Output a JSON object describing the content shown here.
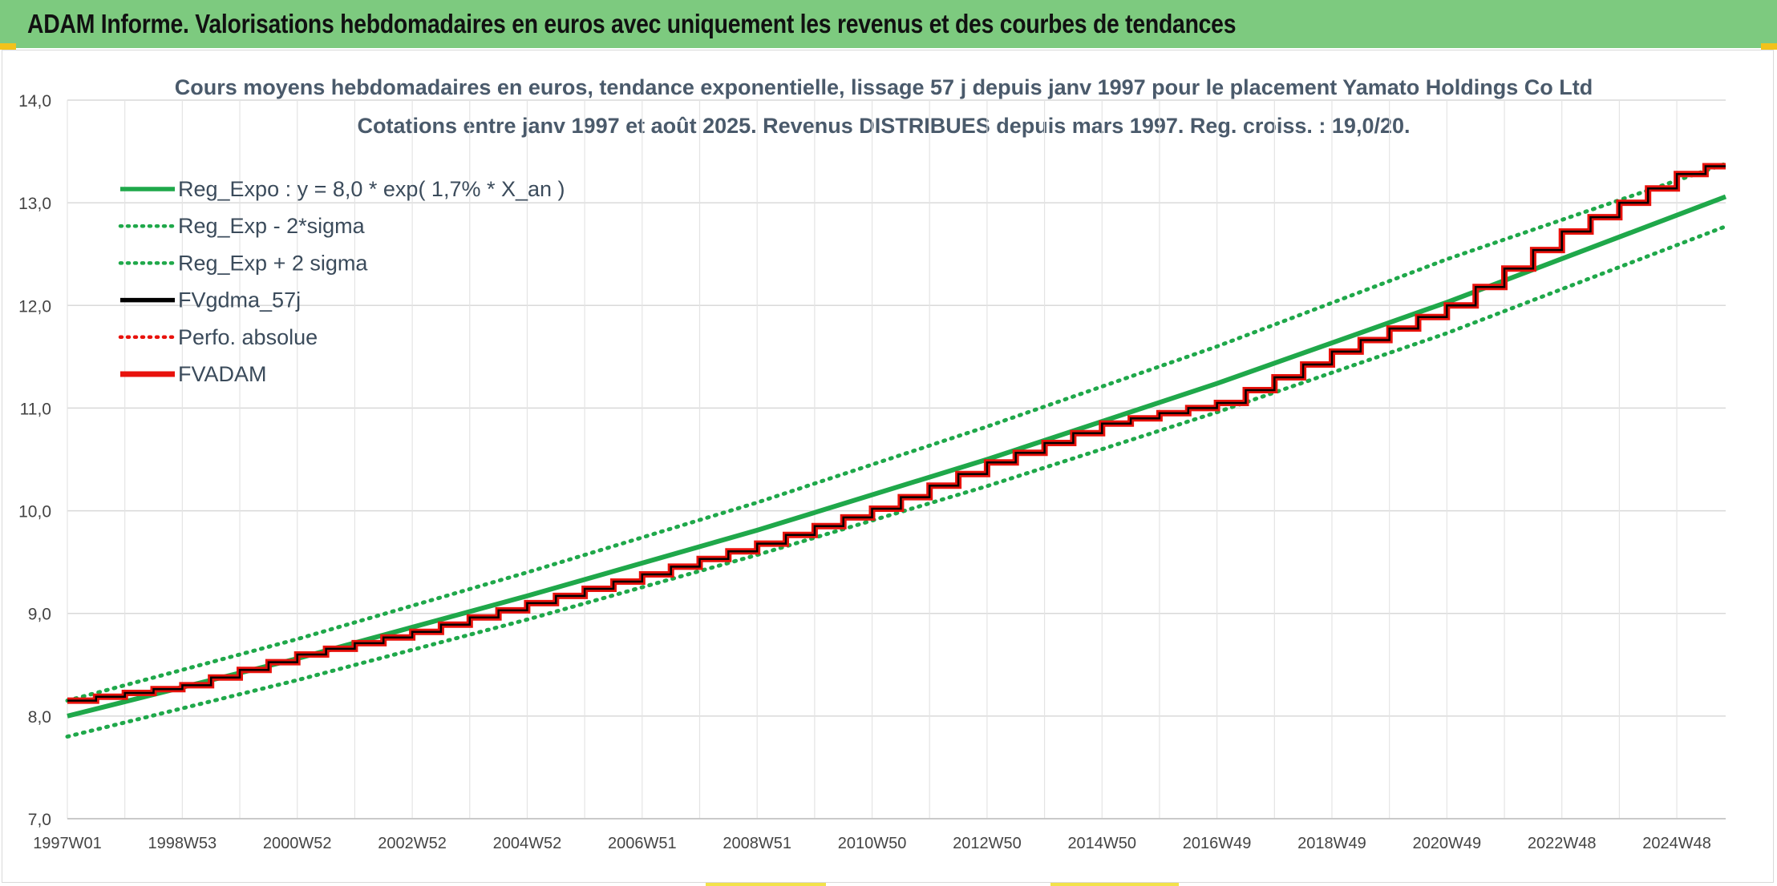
{
  "banner": {
    "title": "ADAM Informe. Valorisations hebdomadaires en euros avec uniquement les revenus et des courbes de tendances"
  },
  "colors": {
    "banner_bg": "#7dca7f",
    "trend_green": "#1fa84a",
    "series_red": "#e8120c",
    "series_black": "#000000"
  },
  "chart_data": {
    "type": "line",
    "title": "Cours moyens hebdomadaires en euros, tendance exponentielle, lissage 57 j depuis janv 1997 pour le placement Yamato Holdings Co Ltd",
    "subtitle": "Cotations entre janv 1997 et août 2025. Revenus DISTRIBUES depuis mars 1997. Reg. croiss. : 19,0/20.",
    "xlabel": "",
    "ylabel": "",
    "ylim": [
      7.0,
      14.0
    ],
    "y_ticks": [
      "7,0",
      "8,0",
      "9,0",
      "10,0",
      "11,0",
      "12,0",
      "13,0",
      "14,0"
    ],
    "x_ticks": [
      "1997W01",
      "1998W53",
      "2000W52",
      "2002W52",
      "2004W52",
      "2006W51",
      "2008W51",
      "2010W50",
      "2012W50",
      "2014W50",
      "2016W49",
      "2018W49",
      "2020W49",
      "2022W48",
      "2024W48"
    ],
    "x_tick_years": [
      1997.0,
      1999.0,
      2001.0,
      2003.0,
      2005.0,
      2007.0,
      2009.0,
      2011.0,
      2013.0,
      2015.0,
      2017.0,
      2019.0,
      2021.0,
      2023.0,
      2025.0
    ],
    "x_range_years": [
      1997.0,
      2025.85
    ],
    "grid": true,
    "legend_placement": "top-left",
    "legend": [
      {
        "label": "Reg_Expo : y = 8,0 * exp( 1,7% *  X_an )",
        "style": "solid",
        "color": "#1fa84a"
      },
      {
        "label": "Reg_Exp - 2*sigma",
        "style": "dotted",
        "color": "#1fa84a"
      },
      {
        "label": "Reg_Exp + 2 sigma",
        "style": "dotted",
        "color": "#1fa84a"
      },
      {
        "label": "FVgdma_57j",
        "style": "solid",
        "color": "#000000"
      },
      {
        "label": "Perfo. absolue",
        "style": "dotted",
        "color": "#e8120c"
      },
      {
        "label": "FVADAM",
        "style": "solid",
        "color": "#e8120c"
      }
    ],
    "series": [
      {
        "name": "Reg_Expo : y = 8,0 * exp( 1,7% *  X_an )",
        "x": [
          1997.0,
          2001.0,
          2005.0,
          2009.0,
          2013.0,
          2017.0,
          2021.0,
          2025.85
        ],
        "y": [
          8.0,
          8.56,
          9.17,
          9.81,
          10.5,
          11.24,
          12.03,
          13.06
        ]
      },
      {
        "name": "Reg_Exp - 2*sigma",
        "x": [
          1997.0,
          2001.0,
          2005.0,
          2009.0,
          2013.0,
          2017.0,
          2021.0,
          2025.85
        ],
        "y": [
          7.8,
          8.35,
          8.94,
          9.57,
          10.24,
          10.96,
          11.73,
          12.77
        ]
      },
      {
        "name": "Reg_Exp + 2 sigma",
        "x": [
          1997.0,
          2001.0,
          2005.0,
          2009.0,
          2013.0,
          2017.0,
          2021.0,
          2025.85
        ],
        "y": [
          8.15,
          8.75,
          9.4,
          10.08,
          10.82,
          11.6,
          12.45,
          13.38
        ]
      },
      {
        "name": "FVgdma_57j",
        "x": [
          1997.0,
          1999.0,
          2001.0,
          2003.0,
          2005.0,
          2007.0,
          2009.0,
          2011.0,
          2013.0,
          2015.0,
          2017.0,
          2019.0,
          2021.0,
          2023.0,
          2025.0,
          2025.85
        ],
        "y": [
          8.15,
          8.3,
          8.6,
          8.82,
          9.1,
          9.38,
          9.68,
          10.02,
          10.47,
          10.85,
          11.05,
          11.55,
          12.0,
          12.72,
          13.28,
          13.41
        ]
      },
      {
        "name": "FVADAM",
        "x": [
          1997.0,
          1999.0,
          2001.0,
          2003.0,
          2005.0,
          2007.0,
          2009.0,
          2011.0,
          2013.0,
          2015.0,
          2017.0,
          2019.0,
          2021.0,
          2023.0,
          2025.0,
          2025.85
        ],
        "y": [
          8.15,
          8.3,
          8.6,
          8.82,
          9.1,
          9.38,
          9.68,
          10.02,
          10.47,
          10.85,
          11.05,
          11.55,
          12.0,
          12.72,
          13.28,
          13.41
        ]
      }
    ]
  }
}
